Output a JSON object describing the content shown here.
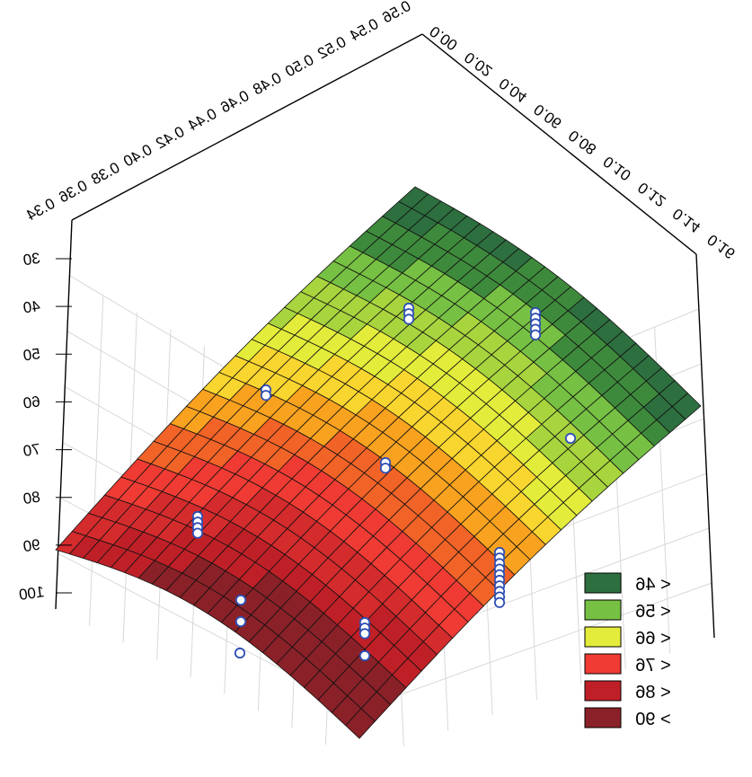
{
  "chart_data": {
    "type": "surface3d",
    "mirrored": true,
    "x_axis": {
      "ticks": [
        "0.00",
        "0.02",
        "0.04",
        "0.06",
        "0.08",
        "0.10",
        "0.12",
        "0.14",
        "0.16"
      ]
    },
    "y_axis": {
      "ticks": [
        "0.34",
        "0.36",
        "0.38",
        "0.40",
        "0.42",
        "0.44",
        "0.46",
        "0.48",
        "0.50",
        "0.52",
        "0.54",
        "0.56"
      ]
    },
    "z_axis": {
      "ticks": [
        "30",
        "40",
        "50",
        "60",
        "70",
        "80",
        "90",
        "100"
      ],
      "range": [
        30,
        100
      ]
    },
    "legend": {
      "position": "bottom-right",
      "items": [
        {
          "label": "< 46",
          "color": "#2e6f3f"
        },
        {
          "label": "< 56",
          "color": "#76c043"
        },
        {
          "label": "< 66",
          "color": "#e3ec3a"
        },
        {
          "label": "< 76",
          "color": "#ef3b33"
        },
        {
          "label": "< 86",
          "color": "#bf2027"
        },
        {
          "label": "> 90",
          "color": "#8a2128"
        }
      ]
    },
    "surface_colors": [
      "#2e6f3f",
      "#3e8a3c",
      "#76c043",
      "#a8d43e",
      "#e3ec3a",
      "#f9d52f",
      "#f8a21f",
      "#f26327",
      "#ef3b33",
      "#d42b2d",
      "#bf2027",
      "#8a2128"
    ]
  }
}
